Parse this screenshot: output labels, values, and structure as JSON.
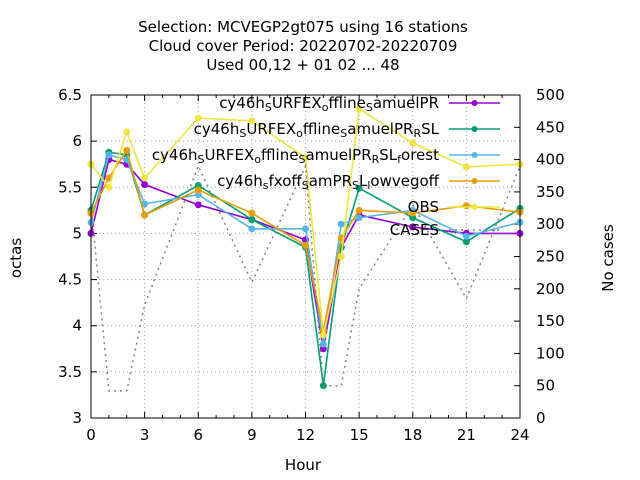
{
  "chart_data": {
    "type": "line",
    "title": [
      "Selection: MCVEGP2gt075 using    16 stations",
      "Cloud cover   Period: 20220702-20220709",
      "Used  00,12  + 01 02 ... 48"
    ],
    "xlabel": "Hour",
    "ylabel": "octas",
    "y2label": "No cases",
    "xlim": [
      0,
      24
    ],
    "ylim": [
      3,
      6.5
    ],
    "y2lim": [
      0,
      500
    ],
    "x_ticks": [
      "0",
      "3",
      "6",
      "9",
      "12",
      "15",
      "18",
      "21",
      "24"
    ],
    "y_ticks": [
      "3",
      "3.5",
      "4",
      "4.5",
      "5",
      "5.5",
      "6",
      "6.5"
    ],
    "y2_ticks": [
      "0",
      "50",
      "100",
      "150",
      "200",
      "250",
      "300",
      "350",
      "400",
      "450",
      "500"
    ],
    "grid": true,
    "legend_position": "top-right",
    "series": [
      {
        "name": "cy46h_SURFEX_offline_SamuelPR",
        "color": "#9400d3",
        "axis": "y",
        "x": [
          0,
          1,
          2,
          3,
          6,
          9,
          12,
          13,
          14,
          15,
          18,
          21,
          24
        ],
        "values": [
          5.0,
          5.8,
          5.75,
          5.53,
          5.31,
          5.15,
          4.93,
          3.75,
          4.85,
          5.2,
          5.07,
          5.0,
          5.0
        ]
      },
      {
        "name": "cy46h_SURFEX_offline_SamuelPR_RSL",
        "color": "#009e73",
        "axis": "y",
        "x": [
          0,
          1,
          2,
          3,
          6,
          9,
          12,
          13,
          14,
          15,
          18,
          21,
          24
        ],
        "values": [
          5.25,
          5.88,
          5.85,
          5.2,
          5.52,
          5.15,
          4.85,
          3.35,
          4.85,
          5.49,
          5.17,
          4.91,
          5.27
        ]
      },
      {
        "name": "cy46h_SURFEX_offline_SamuelPR_RSL_forest",
        "color": "#56b4e9",
        "axis": "y",
        "x": [
          0,
          1,
          2,
          3,
          6,
          9,
          12,
          13,
          14,
          15,
          18,
          21,
          24
        ],
        "values": [
          5.12,
          5.85,
          5.8,
          5.32,
          5.42,
          5.05,
          5.05,
          3.8,
          5.1,
          5.17,
          5.25,
          4.97,
          5.12
        ]
      },
      {
        "name": "cy46h_sfxoff_SamPR_SL_lowvegoff",
        "color": "#e69f00",
        "axis": "y",
        "x": [
          0,
          1,
          2,
          3,
          6,
          9,
          12,
          13,
          14,
          15,
          18,
          21,
          24
        ],
        "values": [
          5.22,
          5.6,
          5.9,
          5.2,
          5.47,
          5.22,
          4.87,
          3.95,
          4.95,
          5.25,
          5.22,
          5.3,
          5.23
        ]
      },
      {
        "name": "OBS",
        "color": "#f0e442",
        "axis": "y",
        "x": [
          0,
          1,
          2,
          3,
          6,
          9,
          12,
          13,
          14,
          15,
          18,
          21,
          24
        ],
        "values": [
          5.75,
          5.5,
          6.1,
          5.6,
          6.25,
          6.22,
          5.82,
          3.9,
          4.75,
          6.35,
          5.98,
          5.72,
          5.75
        ]
      },
      {
        "name": "CASES",
        "color": "#808080",
        "axis": "y2",
        "x": [
          0,
          1,
          2,
          3,
          6,
          9,
          12,
          13,
          14,
          15,
          18,
          21,
          24
        ],
        "values": [
          330,
          42,
          42,
          175,
          390,
          210,
          390,
          50,
          50,
          200,
          330,
          185,
          390
        ]
      }
    ]
  }
}
